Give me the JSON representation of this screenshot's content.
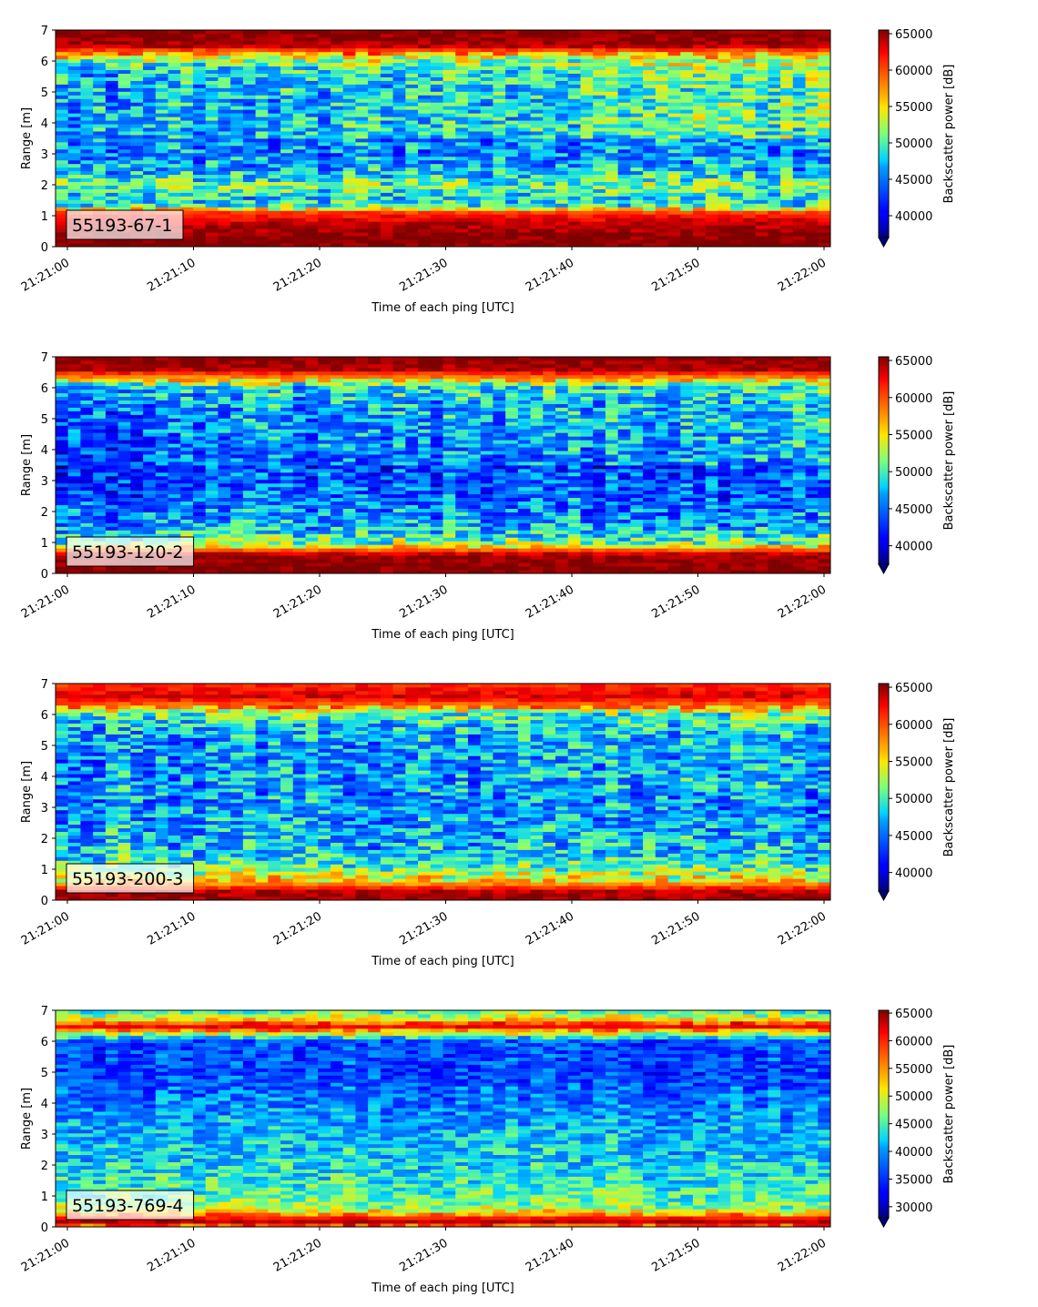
{
  "chart_data": [
    {
      "type": "heatmap",
      "label": "55193-67-1",
      "xlabel": "Time of each ping [UTC]",
      "ylabel": "Range [m]",
      "x_ticks": [
        "21:21:00",
        "21:21:10",
        "21:21:20",
        "21:21:30",
        "21:21:40",
        "21:21:50",
        "21:22:00"
      ],
      "y_ticks": [
        "0",
        "1",
        "2",
        "3",
        "4",
        "5",
        "6",
        "7"
      ],
      "ylim": [
        0,
        7
      ],
      "colorbar": {
        "label": "Backscatter power [dB]",
        "ticks": [
          "40000",
          "45000",
          "50000",
          "55000",
          "60000",
          "65000"
        ],
        "min": 37000,
        "max": 65500,
        "extend": "min",
        "colormap": "jet"
      },
      "profile": [
        {
          "range": 0.0,
          "value": 65500
        },
        {
          "range": 0.25,
          "value": 65500
        },
        {
          "range": 0.75,
          "value": 64000
        },
        {
          "range": 1.1,
          "value": 61000
        },
        {
          "range": 1.3,
          "value": 50000
        },
        {
          "range": 1.6,
          "value": 48000
        },
        {
          "range": 2.0,
          "value": 51000
        },
        {
          "range": 2.5,
          "value": 47000
        },
        {
          "range": 3.0,
          "value": 45500
        },
        {
          "range": 4.0,
          "value": 46500
        },
        {
          "range": 5.0,
          "value": 46000
        },
        {
          "range": 5.8,
          "value": 47500
        },
        {
          "range": 6.2,
          "value": 56000
        },
        {
          "range": 6.5,
          "value": 64500
        },
        {
          "range": 7.0,
          "value": 65500
        }
      ],
      "trend": "near-surface band (4-6 m) strengthens toward 21:22:00"
    },
    {
      "type": "heatmap",
      "label": "55193-120-2",
      "xlabel": "Time of each ping [UTC]",
      "ylabel": "Range [m]",
      "x_ticks": [
        "21:21:00",
        "21:21:10",
        "21:21:20",
        "21:21:30",
        "21:21:40",
        "21:21:50",
        "21:22:00"
      ],
      "y_ticks": [
        "0",
        "1",
        "2",
        "3",
        "4",
        "5",
        "6",
        "7"
      ],
      "ylim": [
        0,
        7
      ],
      "colorbar": {
        "label": "Backscatter power [dB]",
        "ticks": [
          "40000",
          "45000",
          "50000",
          "55000",
          "60000",
          "65000"
        ],
        "min": 37500,
        "max": 65500,
        "extend": "min",
        "colormap": "jet"
      },
      "profile": [
        {
          "range": 0.0,
          "value": 65500
        },
        {
          "range": 0.6,
          "value": 65000
        },
        {
          "range": 0.8,
          "value": 58000
        },
        {
          "range": 1.0,
          "value": 51000
        },
        {
          "range": 1.5,
          "value": 47000
        },
        {
          "range": 2.5,
          "value": 44500
        },
        {
          "range": 3.5,
          "value": 43500
        },
        {
          "range": 4.5,
          "value": 44500
        },
        {
          "range": 5.5,
          "value": 45500
        },
        {
          "range": 6.0,
          "value": 48000
        },
        {
          "range": 6.3,
          "value": 57000
        },
        {
          "range": 6.6,
          "value": 64500
        },
        {
          "range": 7.0,
          "value": 65500
        }
      ],
      "trend": "upper water column (4-6 m) brightens toward 21:22:00"
    },
    {
      "type": "heatmap",
      "label": "55193-200-3",
      "xlabel": "Time of each ping [UTC]",
      "ylabel": "Range [m]",
      "x_ticks": [
        "21:21:00",
        "21:21:10",
        "21:21:20",
        "21:21:30",
        "21:21:40",
        "21:21:50",
        "21:22:00"
      ],
      "y_ticks": [
        "0",
        "1",
        "2",
        "3",
        "4",
        "5",
        "6",
        "7"
      ],
      "ylim": [
        0,
        7
      ],
      "colorbar": {
        "label": "Backscatter power [dB]",
        "ticks": [
          "40000",
          "45000",
          "50000",
          "55000",
          "60000",
          "65000"
        ],
        "min": 37500,
        "max": 65500,
        "extend": "min",
        "colormap": "jet"
      },
      "profile": [
        {
          "range": 0.0,
          "value": 65000
        },
        {
          "range": 0.3,
          "value": 64000
        },
        {
          "range": 0.6,
          "value": 56000
        },
        {
          "range": 1.0,
          "value": 51000
        },
        {
          "range": 1.5,
          "value": 48000
        },
        {
          "range": 2.5,
          "value": 46500
        },
        {
          "range": 3.5,
          "value": 46000
        },
        {
          "range": 4.5,
          "value": 45500
        },
        {
          "range": 5.5,
          "value": 46500
        },
        {
          "range": 6.0,
          "value": 50000
        },
        {
          "range": 6.3,
          "value": 59000
        },
        {
          "range": 6.6,
          "value": 63500
        },
        {
          "range": 7.0,
          "value": 61000
        }
      ],
      "trend": "largely uniform, slight brightening toward 21:22:00"
    },
    {
      "type": "heatmap",
      "label": "55193-769-4",
      "xlabel": "Time of each ping [UTC]",
      "ylabel": "Range [m]",
      "x_ticks": [
        "21:21:00",
        "21:21:10",
        "21:21:20",
        "21:21:30",
        "21:21:40",
        "21:21:50",
        "21:22:00"
      ],
      "y_ticks": [
        "0",
        "1",
        "2",
        "3",
        "4",
        "5",
        "6",
        "7"
      ],
      "ylim": [
        0,
        7
      ],
      "colorbar": {
        "label": "Backscatter power [dB]",
        "ticks": [
          "30000",
          "35000",
          "40000",
          "45000",
          "50000",
          "55000",
          "60000",
          "65000"
        ],
        "min": 28000,
        "max": 65500,
        "extend": "min",
        "colormap": "jet"
      },
      "profile": [
        {
          "range": 0.0,
          "value": 55000
        },
        {
          "range": 0.2,
          "value": 65000
        },
        {
          "range": 0.35,
          "value": 58000
        },
        {
          "range": 0.6,
          "value": 48000
        },
        {
          "range": 1.0,
          "value": 45500
        },
        {
          "range": 2.0,
          "value": 42500
        },
        {
          "range": 3.0,
          "value": 41000
        },
        {
          "range": 4.0,
          "value": 38500
        },
        {
          "range": 5.0,
          "value": 36000
        },
        {
          "range": 6.0,
          "value": 36500
        },
        {
          "range": 6.3,
          "value": 52000
        },
        {
          "range": 6.5,
          "value": 63000
        },
        {
          "range": 6.7,
          "value": 52000
        },
        {
          "range": 7.0,
          "value": 44000
        }
      ],
      "trend": "uniform in time"
    }
  ]
}
